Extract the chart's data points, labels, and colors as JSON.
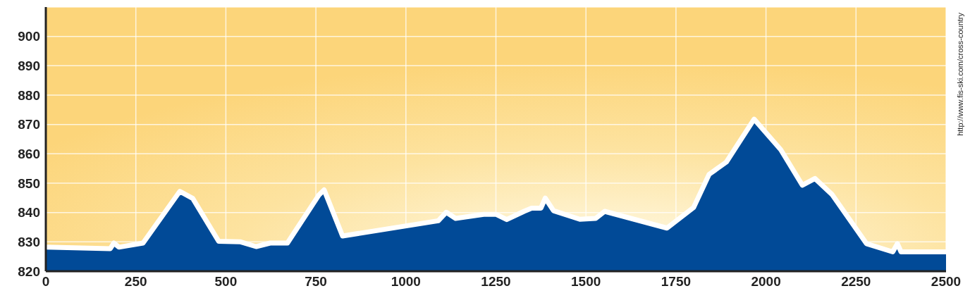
{
  "chart_data": {
    "type": "area",
    "x": [
      0,
      179,
      189,
      203,
      270,
      372,
      408,
      480,
      541,
      584,
      623,
      671,
      758,
      773,
      824,
      1090,
      1112,
      1138,
      1216,
      1250,
      1280,
      1328,
      1349,
      1375,
      1387,
      1410,
      1483,
      1527,
      1552,
      1725,
      1799,
      1842,
      1890,
      1967,
      2041,
      2101,
      2136,
      2183,
      2279,
      2352,
      2365,
      2375,
      2500
    ],
    "series": [
      {
        "color": "#014a97",
        "values": [
          828.2,
          827.7,
          829.6,
          828.2,
          829.6,
          847.2,
          844.8,
          830.2,
          830,
          828.4,
          829.6,
          829.6,
          845.9,
          847.7,
          832,
          837.2,
          840.1,
          838,
          839.4,
          839.4,
          837.6,
          840.4,
          841.5,
          841.5,
          844.9,
          840.6,
          837.7,
          838,
          840.4,
          834.7,
          841.7,
          853,
          857.2,
          871.8,
          861.4,
          849.3,
          851.6,
          846.2,
          829.4,
          826.6,
          829.4,
          826.6,
          826.6
        ]
      }
    ],
    "xlim": [
      0,
      2500
    ],
    "xticks": [
      0,
      250,
      500,
      750,
      1000,
      1250,
      1500,
      1750,
      2000,
      2250,
      2500
    ],
    "ylim": [
      820,
      910
    ],
    "yticks": [
      820,
      830,
      840,
      850,
      860,
      870,
      880,
      890,
      900
    ],
    "grid": true,
    "marker": "none",
    "annotations": [
      "http://www.fis-ski.com/cross-country"
    ]
  }
}
